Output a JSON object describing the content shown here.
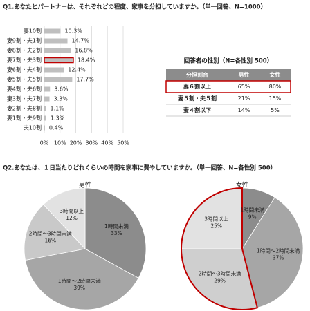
{
  "chart_data": [
    {
      "type": "hbar",
      "title": "Q1.あなたとパートナーは、それぞれどの程度、家事を分担していますか。（単一回答、N=1000）",
      "categories": [
        "妻10割",
        "妻9割・夫1割",
        "妻8割・夫2割",
        "妻7割・夫3割",
        "妻6割・夫4割",
        "妻5割・夫5割",
        "妻4割・夫6割",
        "妻3割・夫7割",
        "妻2割・夫8割",
        "妻1割・夫9割",
        "夫10割"
      ],
      "values": [
        10.3,
        14.7,
        16.8,
        18.4,
        12.4,
        17.7,
        3.6,
        3.3,
        1.1,
        1.3,
        0.4
      ],
      "value_labels": [
        "10.3%",
        "14.7%",
        "16.8%",
        "18.4%",
        "12.4%",
        "17.7%",
        "3.6%",
        "3.3%",
        "1.1%",
        "1.3%",
        "0.4%"
      ],
      "color": "#bfbfbf",
      "highlight": [
        3
      ],
      "highlight_color": "#c00000",
      "xlim": [
        0,
        50
      ],
      "xticks": [
        {
          "value": 0,
          "label": "0%"
        },
        {
          "value": 10,
          "label": "10%"
        },
        {
          "value": 20,
          "label": "20%"
        },
        {
          "value": 30,
          "label": "30%"
        },
        {
          "value": 40,
          "label": "40%"
        },
        {
          "value": 50,
          "label": "50%"
        }
      ],
      "grid": true
    },
    {
      "type": "pie",
      "title": "Q2.あなたは、１日当たりどれくらいの時間を家事に費やしていますか。（単一回答、N=各性別 500）",
      "subtitle": "男性",
      "categories": [
        "1時間未満",
        "1時間～2時間未満",
        "2時間～3時間未満",
        "3時間以上"
      ],
      "values": [
        33,
        39,
        16,
        12
      ],
      "value_labels": [
        "33%",
        "39%",
        "16%",
        "12%"
      ],
      "colors": [
        "#8c8c8c",
        "#a6a6a6",
        "#c9c9c9",
        "#e2e2e2"
      ]
    },
    {
      "type": "pie",
      "subtitle": "女性",
      "categories": [
        "1時間未満",
        "1時間～2時間未満",
        "2時間～3時間未満",
        "3時間以上"
      ],
      "values": [
        9,
        37,
        29,
        25
      ],
      "value_labels": [
        "9%",
        "37%",
        "29%",
        "25%"
      ],
      "colors": [
        "#8c8c8c",
        "#a6a6a6",
        "#cfcfcf",
        "#e2e2e2"
      ],
      "highlight": [
        2,
        3
      ],
      "highlight_color": "#c00000"
    }
  ],
  "table": {
    "title": "回答者の性別（N=各性別 500）",
    "header": [
      "分担割合",
      "男性",
      "女性"
    ],
    "rows": [
      [
        "妻６割以上",
        "65%",
        "80%"
      ],
      [
        "妻５割・夫５割",
        "21%",
        "15%"
      ],
      [
        "妻４割以下",
        "14%",
        "5%"
      ]
    ],
    "highlight_row": 0
  }
}
